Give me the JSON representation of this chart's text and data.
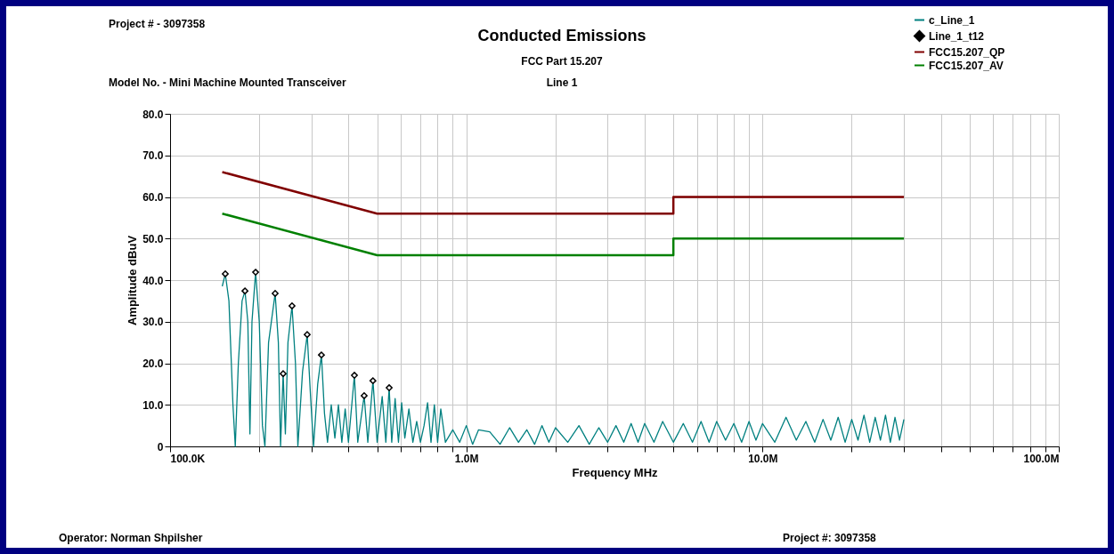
{
  "chart_data": {
    "type": "line",
    "title": "Conducted Emissions",
    "subtitle": "FCC Part 15.207",
    "xlabel": "Frequency MHz",
    "ylabel": "Amplitude dBuV",
    "annotations": [
      "Line 1",
      "Project # - 3097358",
      "Model No. - Mini Machine Mounted Transceiver",
      "Operator: Norman Shpilsher",
      "Project #: 3097358"
    ],
    "log": "x",
    "grid": true,
    "legend": "top right",
    "xlim": [
      100000,
      100000000
    ],
    "xticks": [
      {
        "value": 100000,
        "label": "100.0K"
      },
      {
        "value": 200000,
        "label": null
      },
      {
        "value": 300000,
        "label": null
      },
      {
        "value": 400000,
        "label": null
      },
      {
        "value": 500000,
        "label": null
      },
      {
        "value": 600000,
        "label": null
      },
      {
        "value": 700000,
        "label": null
      },
      {
        "value": 800000,
        "label": null
      },
      {
        "value": 900000,
        "label": null
      },
      {
        "value": 1000000,
        "label": "1.0M"
      },
      {
        "value": 2000000,
        "label": null
      },
      {
        "value": 3000000,
        "label": null
      },
      {
        "value": 4000000,
        "label": null
      },
      {
        "value": 5000000,
        "label": null
      },
      {
        "value": 6000000,
        "label": null
      },
      {
        "value": 7000000,
        "label": null
      },
      {
        "value": 8000000,
        "label": null
      },
      {
        "value": 9000000,
        "label": null
      },
      {
        "value": 10000000,
        "label": "10.0M"
      },
      {
        "value": 20000000,
        "label": null
      },
      {
        "value": 30000000,
        "label": null
      },
      {
        "value": 40000000,
        "label": null
      },
      {
        "value": 50000000,
        "label": null
      },
      {
        "value": 60000000,
        "label": null
      },
      {
        "value": 70000000,
        "label": null
      },
      {
        "value": 80000000,
        "label": null
      },
      {
        "value": 90000000,
        "label": null
      },
      {
        "value": 100000000,
        "label": "100.0M"
      }
    ],
    "ylim": [
      0,
      80
    ],
    "yticks": [
      0,
      {
        "value": 10,
        "label": "10.0"
      },
      {
        "value": 20,
        "label": "20.0"
      },
      {
        "value": 30,
        "label": "30.0"
      },
      {
        "value": 40,
        "label": "40.0"
      },
      {
        "value": 50,
        "label": "50.0"
      },
      {
        "value": 60,
        "label": "60.0"
      },
      {
        "value": 70,
        "label": "70.0"
      },
      {
        "value": 80,
        "label": "80.0"
      }
    ],
    "series": [
      {
        "name": "c_Line_1",
        "color": "#008080",
        "x": [
          150000,
          153600,
          158000,
          163000,
          166000,
          170000,
          175000,
          179000,
          183000,
          186000,
          189000,
          194400,
          200000,
          205000,
          209000,
          215000,
          226300,
          232000,
          236000,
          240800,
          245000,
          250000,
          258000,
          265000,
          270000,
          280000,
          290300,
          298000,
          305000,
          315000,
          324300,
          332000,
          340000,
          350000,
          360000,
          370000,
          380000,
          390000,
          400000,
          419000,
          430000,
          452000,
          465000,
          484000,
          500000,
          520000,
          535000,
          549000,
          560000,
          575000,
          590000,
          605000,
          620000,
          640000,
          660000,
          680000,
          700000,
          720000,
          740000,
          760000,
          780000,
          800000,
          820000,
          850000,
          900000,
          950000,
          1000000,
          1050000,
          1100000,
          1200000,
          1300000,
          1400000,
          1500000,
          1600000,
          1700000,
          1800000,
          1900000,
          2000000,
          2200000,
          2400000,
          2600000,
          2800000,
          3000000,
          3200000,
          3400000,
          3600000,
          3800000,
          4000000,
          4300000,
          4600000,
          5000000,
          5400000,
          5800000,
          6200000,
          6600000,
          7000000,
          7500000,
          8000000,
          8500000,
          9000000,
          9500000,
          10000000,
          11000000,
          12000000,
          13000000,
          14000000,
          15000000,
          16000000,
          17000000,
          18000000,
          19000000,
          20000000,
          21000000,
          22000000,
          23000000,
          24000000,
          25000000,
          26000000,
          27000000,
          28000000,
          29000000,
          30000000
        ],
        "values": [
          38.5,
          41.5,
          35,
          10,
          0,
          20,
          35,
          37.4,
          30,
          3,
          30,
          41.9,
          30,
          5,
          0,
          25,
          36.8,
          25,
          0,
          17.5,
          3,
          25,
          33.8,
          20,
          0,
          18,
          26.9,
          12,
          0,
          15,
          22.0,
          8,
          1,
          10,
          2,
          10,
          1,
          9,
          1,
          17.1,
          1,
          12.2,
          1,
          15.8,
          1,
          12,
          1,
          14.1,
          1,
          11.5,
          1,
          10.5,
          2,
          9,
          1,
          6,
          1,
          5,
          10.5,
          1,
          10,
          1,
          9,
          1,
          4,
          1,
          5,
          0.5,
          4,
          3.5,
          0.5,
          4.5,
          1,
          4,
          0.5,
          5,
          1,
          4.5,
          1,
          5,
          0.5,
          4.5,
          1,
          5,
          1,
          5.5,
          1,
          5.5,
          1,
          6,
          1,
          5.5,
          1,
          6,
          1,
          6,
          1.5,
          5.5,
          1,
          6,
          1.5,
          5.5,
          1,
          7,
          1.5,
          6,
          1,
          6.5,
          1.5,
          7,
          1,
          6.5,
          1.5,
          7.5,
          1,
          7,
          1.5,
          7.5,
          1,
          7,
          1.5,
          6.5
        ]
      },
      {
        "name": "Line_1_t12",
        "type": "scatter",
        "marker": "diamond",
        "color": "#000000",
        "x": [
          153600,
          179000,
          194400,
          226300,
          240800,
          258000,
          290300,
          324300,
          419000,
          452000,
          484000,
          549000
        ],
        "values": [
          41.5,
          37.4,
          41.9,
          36.8,
          17.5,
          33.8,
          26.9,
          22.0,
          17.1,
          12.2,
          15.8,
          14.1
        ]
      },
      {
        "name": "FCC15.207_QP",
        "color": "#800000",
        "x": [
          150000,
          500000,
          5000000,
          5000000,
          30000000
        ],
        "values": [
          66,
          56,
          56,
          60,
          60
        ]
      },
      {
        "name": "FCC15.207_AV",
        "color": "#008000",
        "x": [
          150000,
          500000,
          5000000,
          5000000,
          30000000
        ],
        "values": [
          56,
          46,
          46,
          50,
          50
        ]
      }
    ]
  }
}
